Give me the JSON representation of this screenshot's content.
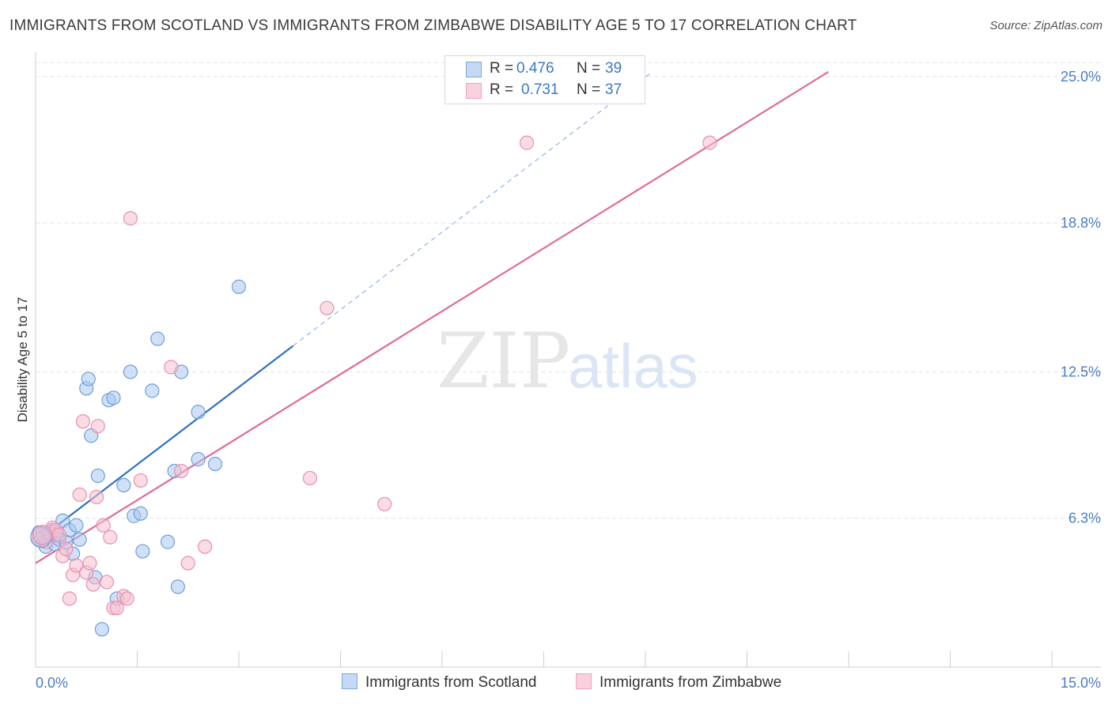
{
  "title": "IMMIGRANTS FROM SCOTLAND VS IMMIGRANTS FROM ZIMBABWE DISABILITY AGE 5 TO 17 CORRELATION CHART",
  "source": "Source: ZipAtlas.com",
  "watermark": {
    "zip": "ZIP",
    "atlas": "atlas"
  },
  "legend_top": {
    "rows": [
      {
        "r_label": "R =",
        "r_value": "0.476",
        "n_label": "N =",
        "n_value": "39"
      },
      {
        "r_label": "R =",
        "r_value": "0.731",
        "n_label": "N =",
        "n_value": "37"
      }
    ]
  },
  "legend_bottom": {
    "scotland": "Immigrants from Scotland",
    "zimbabwe": "Immigrants from Zimbabwe"
  },
  "colors": {
    "scotland_fill": "#a9c8f0",
    "scotland_stroke": "#6f9fd8",
    "scotland_line": "#2f6fc6",
    "zimbabwe_fill": "#f6bfd0",
    "zimbabwe_stroke": "#e890ad",
    "zimbabwe_line": "#e06a95",
    "tick_label": "#4a7cc7",
    "grid": "#e3e3e3"
  },
  "chart_data": {
    "type": "scatter",
    "title": "IMMIGRANTS FROM SCOTLAND VS IMMIGRANTS FROM ZIMBABWE DISABILITY AGE 5 TO 17 CORRELATION CHART",
    "xlabel": "",
    "ylabel": "Disability Age 5 to 17",
    "xlim": [
      0,
      15
    ],
    "ylim": [
      0,
      25.6
    ],
    "x_tick_labels": [
      "0.0%",
      "15.0%"
    ],
    "y_ticks": [
      6.3,
      12.5,
      18.8,
      25.0
    ],
    "y_tick_labels": [
      "6.3%",
      "12.5%",
      "18.8%",
      "25.0%"
    ],
    "series": [
      {
        "name": "Immigrants from Scotland",
        "r": 0.476,
        "n": 39,
        "trend": {
          "x0": 0.0,
          "y0": 5.3,
          "x1": 3.8,
          "y1": 13.6,
          "dash_to_x": 9.1,
          "dash_to_y": 25.2
        },
        "points": [
          [
            0.05,
            5.7
          ],
          [
            0.08,
            5.4
          ],
          [
            0.12,
            5.5
          ],
          [
            0.15,
            5.1
          ],
          [
            0.2,
            5.6
          ],
          [
            0.25,
            5.8
          ],
          [
            0.28,
            5.2
          ],
          [
            0.3,
            5.6
          ],
          [
            0.35,
            5.4
          ],
          [
            0.4,
            6.2
          ],
          [
            0.45,
            5.3
          ],
          [
            0.5,
            5.8
          ],
          [
            0.55,
            4.8
          ],
          [
            0.6,
            6.0
          ],
          [
            0.65,
            5.4
          ],
          [
            0.75,
            11.8
          ],
          [
            0.78,
            12.2
          ],
          [
            0.82,
            9.8
          ],
          [
            0.88,
            3.8
          ],
          [
            0.92,
            8.1
          ],
          [
            0.98,
            1.6
          ],
          [
            1.08,
            11.3
          ],
          [
            1.15,
            11.4
          ],
          [
            1.2,
            2.9
          ],
          [
            1.3,
            7.7
          ],
          [
            1.4,
            12.5
          ],
          [
            1.45,
            6.4
          ],
          [
            1.55,
            6.5
          ],
          [
            1.58,
            4.9
          ],
          [
            1.72,
            11.7
          ],
          [
            1.8,
            13.9
          ],
          [
            1.95,
            5.3
          ],
          [
            2.05,
            8.3
          ],
          [
            2.1,
            3.4
          ],
          [
            2.15,
            12.5
          ],
          [
            2.4,
            8.8
          ],
          [
            2.4,
            10.8
          ],
          [
            2.65,
            8.6
          ],
          [
            3.0,
            16.1
          ]
        ]
      },
      {
        "name": "Immigrants from Zimbabwe",
        "r": 0.731,
        "n": 37,
        "trend": {
          "x0": 0.0,
          "y0": 4.4,
          "x1": 11.7,
          "y1": 25.2
        },
        "points": [
          [
            0.05,
            5.4
          ],
          [
            0.1,
            5.6
          ],
          [
            0.15,
            5.3
          ],
          [
            0.2,
            5.7
          ],
          [
            0.25,
            5.9
          ],
          [
            0.3,
            5.8
          ],
          [
            0.35,
            5.6
          ],
          [
            0.4,
            4.7
          ],
          [
            0.45,
            5.0
          ],
          [
            0.5,
            2.9
          ],
          [
            0.55,
            3.9
          ],
          [
            0.6,
            4.3
          ],
          [
            0.65,
            7.3
          ],
          [
            0.7,
            10.4
          ],
          [
            0.75,
            4.0
          ],
          [
            0.8,
            4.4
          ],
          [
            0.85,
            3.5
          ],
          [
            0.9,
            7.2
          ],
          [
            0.92,
            10.2
          ],
          [
            1.0,
            6.0
          ],
          [
            1.05,
            3.6
          ],
          [
            1.1,
            5.5
          ],
          [
            1.15,
            2.5
          ],
          [
            1.2,
            2.5
          ],
          [
            1.3,
            3.0
          ],
          [
            1.35,
            2.9
          ],
          [
            1.4,
            19.0
          ],
          [
            1.55,
            7.9
          ],
          [
            2.0,
            12.7
          ],
          [
            2.15,
            8.3
          ],
          [
            2.25,
            4.4
          ],
          [
            2.5,
            5.1
          ],
          [
            4.3,
            15.2
          ],
          [
            4.05,
            8.0
          ],
          [
            5.15,
            6.9
          ],
          [
            7.25,
            22.2
          ],
          [
            9.95,
            22.2
          ]
        ]
      }
    ]
  }
}
